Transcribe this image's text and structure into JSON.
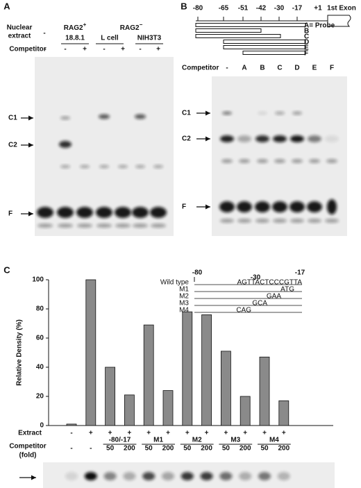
{
  "panel_a": {
    "label": "A",
    "extract_label": [
      "Nuclear",
      "extract"
    ],
    "extract_none": "-",
    "groups": [
      {
        "name": "RAG2",
        "sup": "+",
        "cells": [
          "18.8.1"
        ]
      },
      {
        "name": "RAG2",
        "sup": "−",
        "cells": [
          "L cell",
          "NIH3T3"
        ]
      }
    ],
    "competitor_label": "Competitor",
    "competitor": [
      "-",
      "-",
      "+",
      "-",
      "+",
      "-",
      "+"
    ],
    "bands": [
      "C1",
      "C2",
      "F"
    ]
  },
  "panel_b": {
    "label": "B",
    "positions": [
      "-80",
      "-65",
      "-51",
      "-42",
      "-30",
      "-17",
      "+1"
    ],
    "exon": "1st Exon",
    "probes": [
      "A= Probe",
      "B",
      "C",
      "D",
      "E",
      "F"
    ],
    "competitor_label": "Competitor",
    "competitor": [
      "-",
      "A",
      "B",
      "C",
      "D",
      "E",
      "F"
    ],
    "bands": [
      "C1",
      "C2",
      "F"
    ]
  },
  "chart_data": {
    "type": "bar",
    "label": "C",
    "ylabel": "Relative Density (%)",
    "values": [
      1,
      100,
      40,
      21,
      69,
      24,
      78,
      76,
      51,
      20,
      47,
      17
    ],
    "color": "#8a8a8a",
    "ylim": [
      0,
      100
    ],
    "yticks": [
      0,
      20,
      40,
      60,
      80,
      100
    ],
    "extract_label": "Extract",
    "extract": [
      "-",
      "+",
      "+",
      "+",
      "+",
      "+",
      "+",
      "+",
      "+",
      "+",
      "+",
      "+"
    ],
    "competitor_label": [
      "Competitor",
      "(fold)"
    ],
    "groups": [
      "-80/-17",
      "M1",
      "M2",
      "M3",
      "M4"
    ],
    "fold": [
      "-",
      "-",
      "50",
      "200",
      "50",
      "200",
      "50",
      "200",
      "50",
      "200",
      "50",
      "200"
    ],
    "inset": {
      "positions": [
        "-80",
        "-30",
        "-17"
      ],
      "rows": [
        {
          "name": "Wild type",
          "seq": "AGTTACTCCCGTTA"
        },
        {
          "name": "M1",
          "seq": "ATG"
        },
        {
          "name": "M2",
          "seq": "GAA"
        },
        {
          "name": "M3",
          "seq": "GCA"
        },
        {
          "name": "M4",
          "seq": "CAG"
        }
      ]
    }
  }
}
